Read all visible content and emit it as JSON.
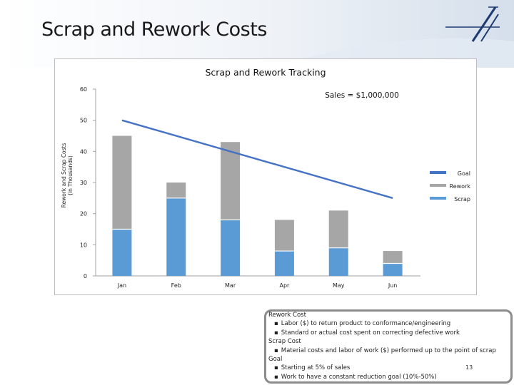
{
  "slide": {
    "title": "Scrap and Rework Costs",
    "page_number": "13"
  },
  "colors": {
    "rework": "#a6a6a6",
    "scrap": "#5b9bd5",
    "goal": "#4472c4",
    "header_band": "#dde6f0"
  },
  "chart_data": {
    "type": "bar",
    "stacked": true,
    "title": "Scrap and Rework Tracking",
    "annotation": "Sales = $1,000,000",
    "ylabel": "Rework and Scrap Costs\n(in Thousands)",
    "xlabel": "",
    "categories": [
      "Jan",
      "Feb",
      "Mar",
      "Apr",
      "May",
      "Jun"
    ],
    "ylim": [
      0,
      60
    ],
    "yticks": [
      "0",
      "10",
      "20",
      "30",
      "40",
      "50",
      "60"
    ],
    "series": [
      {
        "name": "Scrap",
        "kind": "bar",
        "values": [
          15,
          25,
          18,
          8,
          9,
          4
        ]
      },
      {
        "name": "Rework",
        "kind": "bar",
        "values": [
          30,
          5,
          25,
          10,
          12,
          4
        ]
      },
      {
        "name": "Goal",
        "kind": "line",
        "values": [
          50,
          null,
          null,
          null,
          null,
          25
        ]
      }
    ],
    "legend": [
      "Goal",
      "Rework",
      "Scrap"
    ],
    "legend_position": "right",
    "grid": false
  },
  "notes": [
    {
      "kind": "head",
      "text": "Rework Cost"
    },
    {
      "kind": "bullet",
      "text": "Labor ($) to return product to conformance/engineering"
    },
    {
      "kind": "bullet",
      "text": "Standard or actual cost spent on correcting defective work"
    },
    {
      "kind": "head",
      "text": "Scrap Cost"
    },
    {
      "kind": "bullet",
      "text": "Material costs and labor of work ($) performed up to the point of scrap"
    },
    {
      "kind": "head",
      "text": "Goal"
    },
    {
      "kind": "bullet",
      "text": "Starting at 5% of sales"
    },
    {
      "kind": "bullet",
      "text": "Work to have a constant reduction goal (10%-50%)"
    }
  ]
}
